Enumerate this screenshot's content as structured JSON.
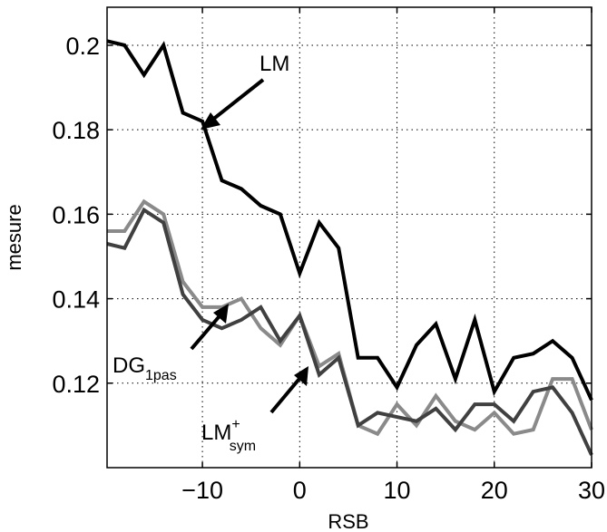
{
  "chart_data": {
    "type": "line",
    "xlabel": "RSB",
    "ylabel": "mesure",
    "xlim": [
      -19.8,
      30
    ],
    "ylim": [
      0.1,
      0.209
    ],
    "xticks": [
      -10,
      0,
      10,
      20,
      30
    ],
    "xtick_labels": [
      "−10",
      "0",
      "10",
      "20",
      "30"
    ],
    "yticks": [
      0.12,
      0.14,
      0.16,
      0.18,
      0.2
    ],
    "ytick_labels": [
      "0.12",
      "0.14",
      "0.16",
      "0.18",
      "0.2"
    ],
    "grid": true,
    "x": [
      -20,
      -18,
      -16,
      -14,
      -12,
      -10,
      -8,
      -6,
      -4,
      -2,
      0,
      2,
      4,
      6,
      8,
      10,
      12,
      14,
      16,
      18,
      20,
      22,
      24,
      26,
      28,
      30
    ],
    "series": [
      {
        "name": "LM",
        "color": "#000000",
        "values": [
          0.201,
          0.2,
          0.193,
          0.2,
          0.184,
          0.182,
          0.168,
          0.166,
          0.162,
          0.16,
          0.146,
          0.158,
          0.152,
          0.126,
          0.126,
          0.119,
          0.129,
          0.134,
          0.121,
          0.135,
          0.118,
          0.126,
          0.127,
          0.13,
          0.126,
          0.116
        ]
      },
      {
        "name": "DG1pas",
        "color": "#404040",
        "values": [
          0.153,
          0.152,
          0.161,
          0.158,
          0.141,
          0.135,
          0.133,
          0.135,
          0.138,
          0.13,
          0.136,
          0.122,
          0.126,
          0.11,
          0.113,
          0.112,
          0.111,
          0.114,
          0.109,
          0.115,
          0.115,
          0.111,
          0.118,
          0.119,
          0.113,
          0.103
        ]
      },
      {
        "name": "LM+sym",
        "color": "#8a8a8a",
        "values": [
          0.156,
          0.156,
          0.163,
          0.16,
          0.144,
          0.138,
          0.138,
          0.14,
          0.133,
          0.129,
          0.136,
          0.124,
          0.127,
          0.11,
          0.108,
          0.115,
          0.11,
          0.117,
          0.111,
          0.109,
          0.113,
          0.108,
          0.109,
          0.121,
          0.121,
          0.109
        ]
      }
    ],
    "annotations": [
      {
        "text": "LM",
        "sub": "",
        "sup": ""
      },
      {
        "text": "DG",
        "sub": "1pas",
        "sup": ""
      },
      {
        "text": "LM",
        "sub": "sym",
        "sup": "+"
      }
    ]
  }
}
